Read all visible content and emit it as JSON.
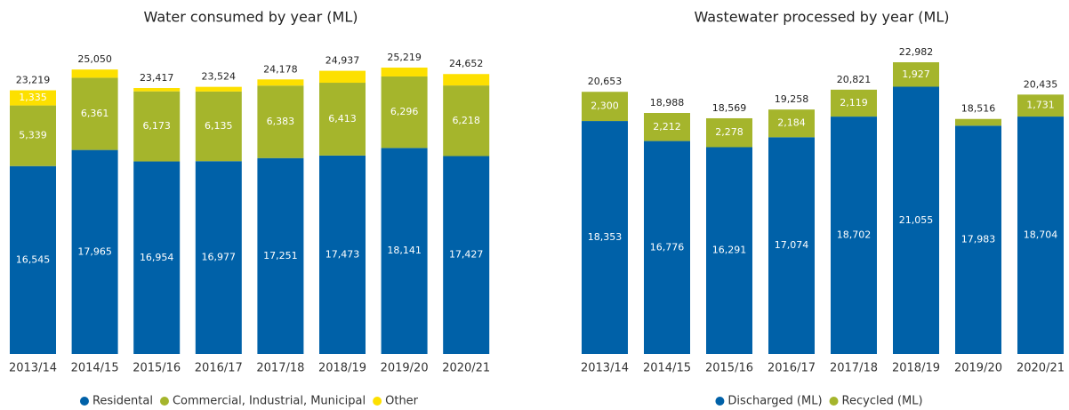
{
  "chart_data": [
    {
      "type": "stacked_bar",
      "title": "Water consumed by year (ML)",
      "categories": [
        "2013/14",
        "2014/15",
        "2015/16",
        "2016/17",
        "2017/18",
        "2018/19",
        "2019/20",
        "2020/21"
      ],
      "series": [
        {
          "name": "Residental",
          "color": "#0061a8",
          "values": [
            16545,
            17965,
            16954,
            16977,
            17251,
            17473,
            18141,
            17427
          ],
          "value_labels": [
            "16,545",
            "17,965",
            "16,954",
            "16,977",
            "17,251",
            "17,473",
            "18,141",
            "17,427"
          ]
        },
        {
          "name": "Commercial, Industrial, Municipal",
          "color": "#a5b52c",
          "values": [
            5339,
            6361,
            6173,
            6135,
            6383,
            6413,
            6296,
            6218
          ],
          "value_labels": [
            "5,339",
            "6,361",
            "6,173",
            "6,135",
            "6,383",
            "6,413",
            "6,296",
            "6,218"
          ]
        },
        {
          "name": "Other",
          "color": "#fde000",
          "values": [
            1335,
            724,
            290,
            412,
            544,
            1051,
            782,
            1007
          ],
          "value_labels": [
            "1,335",
            null,
            null,
            null,
            null,
            null,
            null,
            null
          ]
        }
      ],
      "totals": [
        23219,
        25050,
        23417,
        23524,
        24178,
        24937,
        25219,
        24652
      ],
      "total_labels": [
        "23,219",
        "25,050",
        "23,417",
        "23,524",
        "24,178",
        "24,937",
        "25,219",
        "24,652"
      ]
    },
    {
      "type": "stacked_bar",
      "title": "Wastewater processed by year (ML)",
      "categories": [
        "2013/14",
        "2014/15",
        "2015/16",
        "2016/17",
        "2017/18",
        "2018/19",
        "2019/20",
        "2020/21"
      ],
      "series": [
        {
          "name": "Discharged (ML)",
          "color": "#0061a8",
          "values": [
            18353,
            16776,
            16291,
            17074,
            18702,
            21055,
            17983,
            18704
          ],
          "value_labels": [
            "18,353",
            "16,776",
            "16,291",
            "17,074",
            "18,702",
            "21,055",
            "17,983",
            "18,704"
          ]
        },
        {
          "name": "Recycled (ML)",
          "color": "#a5b52c",
          "values": [
            2300,
            2212,
            2278,
            2184,
            2119,
            1927,
            533,
            1731
          ],
          "value_labels": [
            "2,300",
            "2,212",
            "2,278",
            "2,184",
            "2,119",
            "1,927",
            null,
            "1,731"
          ]
        }
      ],
      "totals": [
        20653,
        18988,
        18569,
        19258,
        20821,
        22982,
        18516,
        20435
      ],
      "total_labels": [
        "20,653",
        "18,988",
        "18,569",
        "19,258",
        "20,821",
        "22,982",
        "18,516",
        "20,435"
      ]
    }
  ]
}
